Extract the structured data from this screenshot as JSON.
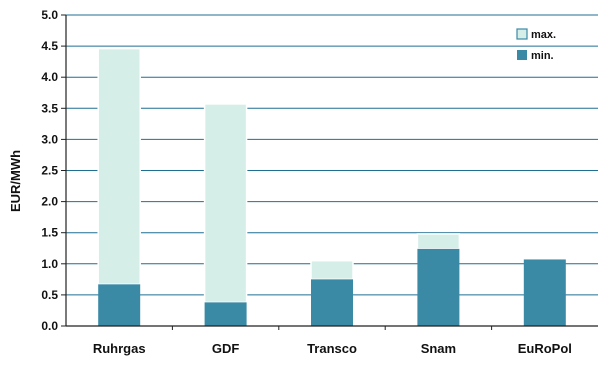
{
  "chart_data": {
    "type": "bar",
    "stacked": true,
    "categories": [
      "Ruhrgas",
      "GDF",
      "Transco",
      "Snam",
      "EuRoPol"
    ],
    "series": [
      {
        "name": "min.",
        "color": "#3a8aa6",
        "values": [
          0.67,
          0.38,
          0.75,
          1.24,
          1.07
        ]
      },
      {
        "name": "max.",
        "color": "#d6eee8",
        "values": [
          4.46,
          3.57,
          1.05,
          1.48,
          1.07
        ]
      }
    ],
    "ylabel": "EUR/MWh",
    "xlabel": "",
    "ylim": [
      0,
      5
    ],
    "yticks": [
      "0.0",
      "0.5",
      "1.0",
      "1.5",
      "2.0",
      "2.5",
      "3.0",
      "3.5",
      "4.0",
      "4.5",
      "5.0"
    ],
    "grid": true,
    "legend_position": "top-right",
    "colors": {
      "grid": "#1f6f93",
      "axis": "#222222",
      "bar_outline": "#ffffff"
    }
  }
}
